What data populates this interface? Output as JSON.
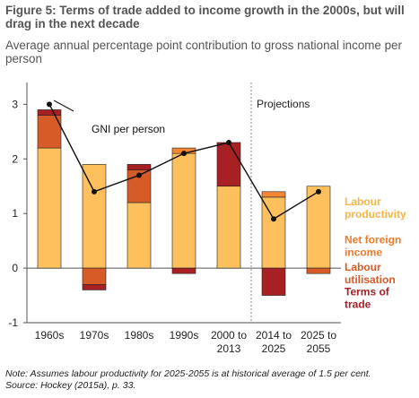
{
  "title": "Figure 5: Terms of trade added to income growth in the 2000s, but will drag in the next decade",
  "subtitle": "Average annual percentage point contribution to gross national income per person",
  "note": "Note: Assumes labour productivity for 2025-2055 is at historical average of 1.5 per cent.",
  "source": "Source: Hockey (2015a), p. 33.",
  "chart_data": {
    "type": "bar",
    "stacked": true,
    "categories": [
      "1960s",
      "1970s",
      "1980s",
      "1990s",
      "2000 to 2013",
      "2014 to 2025",
      "2025 to 2055"
    ],
    "category_lines": [
      [
        "1960s"
      ],
      [
        "1970s"
      ],
      [
        "1980s"
      ],
      [
        "1990s"
      ],
      [
        "2000 to",
        "2013"
      ],
      [
        "2014 to",
        "2025"
      ],
      [
        "2025 to",
        "2055"
      ]
    ],
    "ylim": [
      -1,
      3.4
    ],
    "yticks": [
      -1,
      0,
      1,
      2,
      3
    ],
    "grid": false,
    "projection_label": "Projections",
    "projection_start_index": 5,
    "series": [
      {
        "name": "Labour productivity",
        "legend_lines": [
          "Labour",
          "productivity"
        ],
        "color": "#FDC05C",
        "values": [
          2.2,
          1.9,
          1.2,
          2.1,
          1.5,
          1.3,
          1.5
        ]
      },
      {
        "name": "Net foreign income",
        "legend_lines": [
          "Net foreign",
          "income"
        ],
        "color": "#F58633",
        "values": [
          0.0,
          0.0,
          0.0,
          0.1,
          0.0,
          0.1,
          0.0
        ]
      },
      {
        "name": "Labour utilisation",
        "legend_lines": [
          "Labour",
          "utilisation"
        ],
        "color": "#D65B27",
        "values": [
          0.6,
          -0.3,
          0.6,
          0.0,
          0.0,
          0.0,
          -0.1
        ]
      },
      {
        "name": "Terms of trade",
        "legend_lines": [
          "Terms of",
          "trade"
        ],
        "color": "#A62024",
        "values": [
          0.1,
          -0.1,
          0.1,
          -0.1,
          0.8,
          -0.5,
          0.0
        ]
      }
    ],
    "line": {
      "name": "GNI per person",
      "label": "GNI per person",
      "color": "#111111",
      "values": [
        3.0,
        1.4,
        1.7,
        2.1,
        2.3,
        0.9,
        1.4
      ]
    }
  }
}
